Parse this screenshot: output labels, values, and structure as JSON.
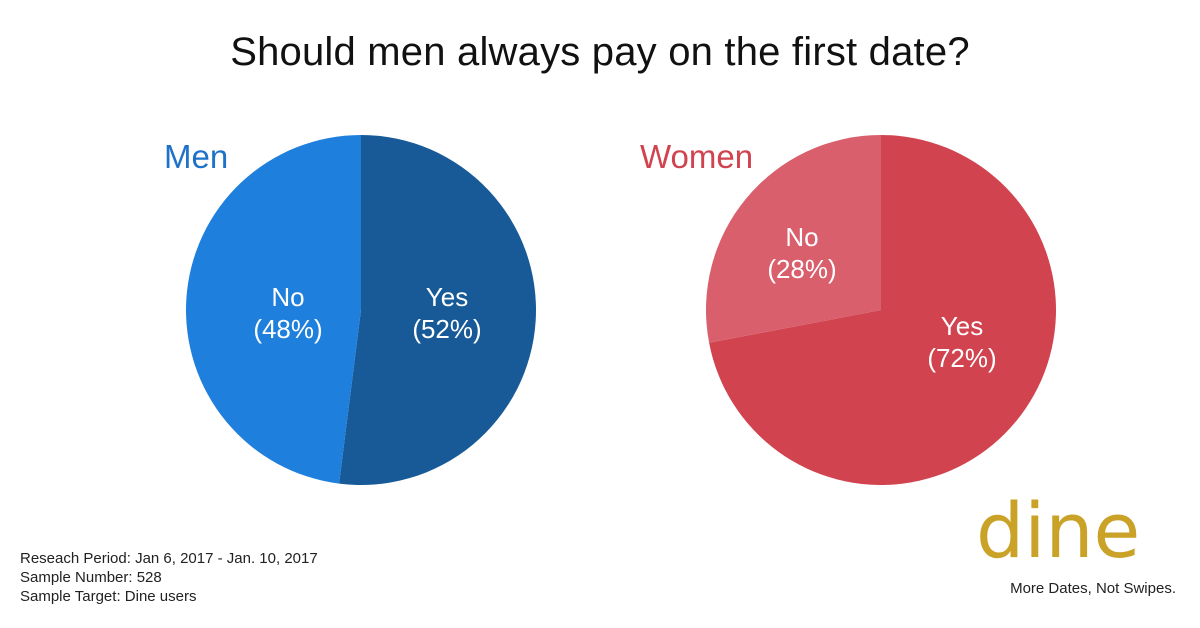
{
  "title": "Should men always pay on the first date?",
  "colors": {
    "men_label": "#1e73c8",
    "men_no": "#1f7fdd",
    "men_yes": "#175a97",
    "women_label": "#d0434f",
    "women_no": "#d95f6d",
    "women_yes": "#d0434f",
    "brand": "#c9a227"
  },
  "chart_data": [
    {
      "type": "pie",
      "title": "Men",
      "slices": [
        {
          "label": "Yes",
          "pct_label": "(52%)",
          "value": 52
        },
        {
          "label": "No",
          "pct_label": "(48%)",
          "value": 48
        }
      ]
    },
    {
      "type": "pie",
      "title": "Women",
      "slices": [
        {
          "label": "Yes",
          "pct_label": "(72%)",
          "value": 72
        },
        {
          "label": "No",
          "pct_label": "(28%)",
          "value": 28
        }
      ]
    }
  ],
  "footnote": {
    "period": "Reseach Period: Jan 6, 2017 - Jan. 10, 2017",
    "sample_number": "Sample Number: 528",
    "sample_target": "Sample Target: Dine users"
  },
  "brand": {
    "logo_text": "dine",
    "tagline": "More Dates, Not Swipes."
  }
}
